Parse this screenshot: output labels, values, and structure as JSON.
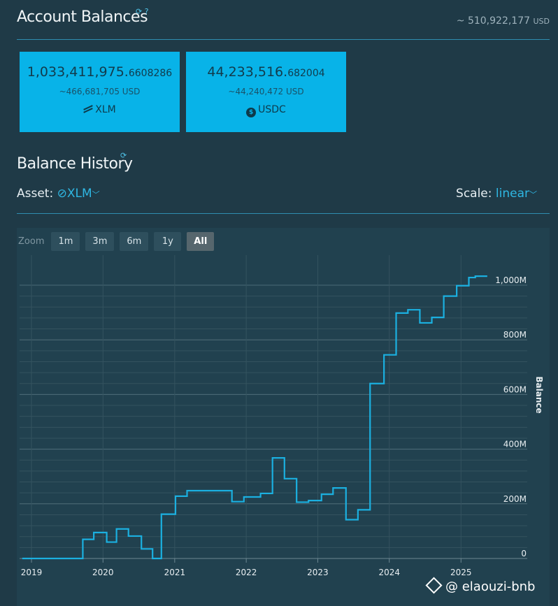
{
  "header": {
    "title": "Account Balances",
    "icons": "⟳ ?",
    "total_prefix": "~ 510,922,177",
    "total_unit": "USD"
  },
  "cards": [
    {
      "amount_int": "1,033,411,975.",
      "amount_frac": "6608286",
      "usd": "~466,681,705 USD",
      "asset": "XLM",
      "icon": "stellar-icon"
    },
    {
      "amount_int": "44,233,516.",
      "amount_frac": "682004",
      "usd": "~44,240,472 USD",
      "asset": "USDC",
      "icon": "usdc-icon"
    }
  ],
  "history": {
    "title": "Balance History",
    "icon": "⟳",
    "asset_label": "Asset:",
    "asset_value": "XLM",
    "scale_label": "Scale:",
    "scale_value": "linear"
  },
  "zoom": {
    "label": "Zoom",
    "buttons": [
      "1m",
      "3m",
      "6m",
      "1y",
      "All"
    ],
    "active": "All"
  },
  "watermark": "@ elaouzi-bnb",
  "chart_data": {
    "type": "line",
    "step": true,
    "ylabel": "Balance",
    "ylim": [
      0,
      1050000000
    ],
    "yticks": [
      {
        "value": 0,
        "label": "0"
      },
      {
        "value": 200000000,
        "label": "200M"
      },
      {
        "value": 400000000,
        "label": "400M"
      },
      {
        "value": 600000000,
        "label": "600M"
      },
      {
        "value": 800000000,
        "label": "800M"
      },
      {
        "value": 1000000000,
        "label": "1,000M"
      }
    ],
    "xlim": [
      "2019-01-01",
      "2025-07-01"
    ],
    "xticks": [
      "2019",
      "2020",
      "2021",
      "2022",
      "2023",
      "2024",
      "2025"
    ],
    "grid": true,
    "series": [
      {
        "color": "#1bb0e0",
        "points": [
          [
            "2018-11-15",
            0
          ],
          [
            "2019-09-20",
            70000000
          ],
          [
            "2019-11-15",
            95000000
          ],
          [
            "2020-01-20",
            60000000
          ],
          [
            "2020-03-10",
            108000000
          ],
          [
            "2020-05-10",
            82000000
          ],
          [
            "2020-07-15",
            35000000
          ],
          [
            "2020-09-10",
            0
          ],
          [
            "2020-10-25",
            162000000
          ],
          [
            "2021-01-05",
            228000000
          ],
          [
            "2021-03-05",
            248000000
          ],
          [
            "2021-10-20",
            208000000
          ],
          [
            "2021-12-20",
            225000000
          ],
          [
            "2022-03-15",
            238000000
          ],
          [
            "2022-05-15",
            368000000
          ],
          [
            "2022-07-15",
            292000000
          ],
          [
            "2022-09-15",
            206000000
          ],
          [
            "2022-11-15",
            212000000
          ],
          [
            "2023-01-20",
            235000000
          ],
          [
            "2023-03-20",
            258000000
          ],
          [
            "2023-05-25",
            142000000
          ],
          [
            "2023-07-25",
            178000000
          ],
          [
            "2023-09-25",
            640000000
          ],
          [
            "2023-12-05",
            745000000
          ],
          [
            "2024-02-05",
            898000000
          ],
          [
            "2024-04-05",
            910000000
          ],
          [
            "2024-06-05",
            862000000
          ],
          [
            "2024-08-05",
            882000000
          ],
          [
            "2024-10-05",
            960000000
          ],
          [
            "2024-12-10",
            998000000
          ],
          [
            "2025-02-10",
            1028000000
          ],
          [
            "2025-03-15",
            1033000000
          ],
          [
            "2025-05-15",
            1033000000
          ]
        ]
      }
    ]
  }
}
